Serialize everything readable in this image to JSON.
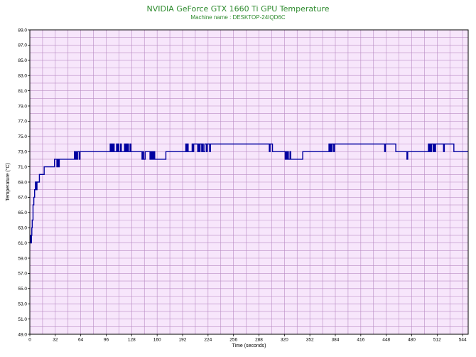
{
  "chart_data": {
    "type": "line",
    "title": "NVIDIA GeForce GTX 1660 Ti GPU Temperature",
    "subtitle": "Machine name : DESKTOP-24IQD6C",
    "xlabel": "Time (seconds)",
    "ylabel": "Temperature (°C)",
    "xlim": [
      0,
      551
    ],
    "ylim": [
      49,
      89
    ],
    "x_ticks": [
      0,
      32,
      64,
      96,
      128,
      160,
      192,
      224,
      256,
      288,
      320,
      352,
      384,
      416,
      448,
      480,
      512,
      544
    ],
    "y_ticks": [
      "49.0",
      "51.0",
      "53.0",
      "55.0",
      "57.0",
      "59.0",
      "61.0",
      "63.0",
      "65.0",
      "67.0",
      "69.0",
      "71.0",
      "73.0",
      "75.0",
      "77.0",
      "79.0",
      "81.0",
      "83.0",
      "85.0",
      "87.0",
      "89.0"
    ],
    "grid": true,
    "colors": {
      "background": "#f7e6fb",
      "grid": "#b98bc4",
      "line": "#0000a0",
      "title": "#2e8b2e"
    },
    "series": [
      {
        "x": [
          0,
          1,
          2,
          2.5,
          3,
          4,
          5,
          6,
          7,
          8,
          9,
          10,
          12,
          13,
          14,
          15,
          18,
          20,
          24,
          30,
          31,
          32,
          33,
          34,
          35,
          36,
          37,
          40,
          50,
          55,
          56,
          57,
          58,
          59,
          60,
          61,
          62,
          63,
          100,
          101,
          102,
          103,
          104,
          105,
          106,
          108,
          109,
          110,
          111,
          112,
          113,
          114,
          115,
          118,
          119,
          120,
          121,
          122,
          123,
          124,
          125,
          126,
          127,
          140,
          141,
          142,
          143,
          144,
          145,
          150,
          151,
          152,
          153,
          154,
          155,
          156,
          157,
          158,
          159,
          160,
          170,
          171,
          172,
          173,
          182,
          183,
          195,
          196,
          197,
          198,
          199,
          200,
          203,
          204,
          205,
          206,
          210,
          211,
          212,
          213,
          214,
          215,
          216,
          217,
          218,
          220,
          221,
          222,
          223,
          224,
          225,
          226,
          227,
          228,
          229,
          230,
          240,
          300,
          301,
          302,
          303,
          304,
          305,
          320,
          321,
          322,
          323,
          324,
          325,
          326,
          327,
          328,
          330,
          331,
          332,
          333,
          334,
          335,
          336,
          343,
          344,
          360,
          375,
          376,
          377,
          378,
          379,
          380,
          381,
          382,
          383,
          384,
          385,
          386,
          387,
          388,
          400,
          440,
          444,
          445,
          446,
          447,
          448,
          460,
          470,
          471,
          472,
          473,
          474,
          475,
          476,
          477,
          478,
          479,
          480,
          490,
          500,
          501,
          502,
          503,
          504,
          505,
          506,
          507,
          508,
          509,
          510,
          511,
          512,
          520,
          521,
          522,
          523,
          530,
          532,
          533,
          534,
          551
        ],
        "values": [
          62,
          61,
          62,
          63,
          64,
          66,
          67,
          68,
          69,
          68,
          69,
          69,
          70,
          70,
          70,
          70,
          71,
          71,
          71,
          71,
          72,
          72,
          72,
          71,
          72,
          71,
          72,
          72,
          72,
          72,
          73,
          72,
          73,
          72,
          73,
          73,
          72,
          73,
          73,
          74,
          73,
          74,
          73,
          74,
          73,
          73,
          74,
          73,
          74,
          73,
          73,
          74,
          73,
          73,
          74,
          73,
          74,
          73,
          74,
          73,
          73,
          74,
          73,
          73,
          72,
          73,
          72,
          72,
          73,
          73,
          72,
          73,
          72,
          73,
          72,
          73,
          72,
          72,
          72,
          72,
          72,
          73,
          73,
          73,
          73,
          73,
          73,
          74,
          73,
          74,
          73,
          73,
          73,
          74,
          73,
          74,
          74,
          73,
          74,
          73,
          74,
          74,
          73,
          74,
          73,
          74,
          74,
          73,
          74,
          74,
          74,
          73,
          74,
          74,
          74,
          74,
          74,
          74,
          73,
          74,
          74,
          74,
          73,
          73,
          72,
          73,
          72,
          73,
          72,
          72,
          73,
          72,
          72,
          72,
          72,
          72,
          72,
          72,
          72,
          73,
          73,
          73,
          73,
          74,
          73,
          74,
          73,
          74,
          74,
          73,
          74,
          74,
          74,
          74,
          74,
          74,
          74,
          74,
          74,
          74,
          73,
          74,
          74,
          73,
          73,
          73,
          73,
          73,
          72,
          73,
          73,
          73,
          73,
          73,
          73,
          73,
          73,
          74,
          73,
          74,
          73,
          74,
          74,
          73,
          74,
          73,
          74,
          74,
          74,
          73,
          74,
          74,
          74,
          74,
          74,
          73,
          73,
          73
        ]
      }
    ]
  }
}
